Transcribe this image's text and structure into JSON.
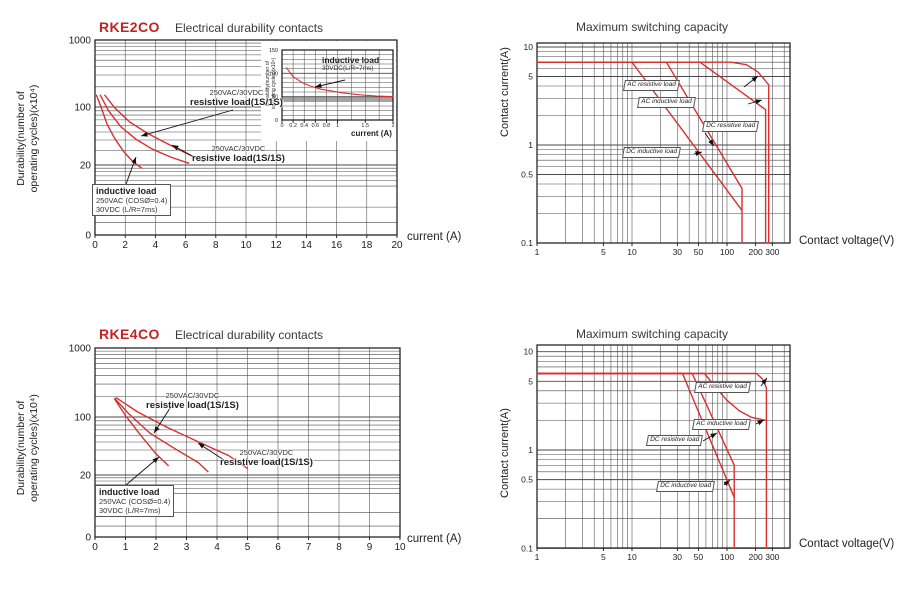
{
  "page": {
    "background": "#ffffff"
  },
  "colors": {
    "curve": "#d83030",
    "model_red": "#c22424",
    "title_gray": "#3a3a3a",
    "grid": "#4a4a4a"
  },
  "chart_data": [
    {
      "id": "rke2co-durability",
      "type": "line",
      "model": "RKE2CO",
      "title": "Electrical durability contacts",
      "ylabel_line1": "Durability(number of",
      "ylabel_line2": "operating cycles)(x10⁴)",
      "xlabel": "current (A)",
      "x_scale": "linear",
      "y_scale": "log-truncated-at-0",
      "xlim": [
        0,
        20
      ],
      "ylim": [
        0,
        1000
      ],
      "x_ticks": [
        "0",
        "2",
        "4",
        "6",
        "8",
        "10",
        "12",
        "14",
        "16",
        "18",
        "20"
      ],
      "y_ticks": [
        "1000",
        "100",
        "20",
        "0"
      ],
      "series": [
        {
          "name": "inductive load 250VAC (COSØ=0.4) 30VDC (L/R=7ms)",
          "points": [
            [
              0.1,
              150
            ],
            [
              0.4,
              100
            ],
            [
              0.8,
              62
            ],
            [
              1.3,
              42
            ],
            [
              1.9,
              29
            ],
            [
              2.5,
              22
            ],
            [
              3.1,
              18
            ]
          ]
        },
        {
          "name": "resistive load (1S/1S) 250VAC/30VDC curve 1",
          "points": [
            [
              0.35,
              150
            ],
            [
              0.9,
              90
            ],
            [
              1.7,
              58
            ],
            [
              2.7,
              41
            ],
            [
              3.8,
              31
            ],
            [
              5,
              25
            ],
            [
              6.2,
              21
            ]
          ]
        },
        {
          "name": "resistive load (1S/1S) 250VAC/30VDC curve 2",
          "points": [
            [
              0.65,
              150
            ],
            [
              1.3,
              98
            ],
            [
              2.3,
              66
            ],
            [
              3.5,
              48
            ],
            [
              4.8,
              36
            ],
            [
              6,
              28
            ],
            [
              7.2,
              22
            ]
          ]
        }
      ],
      "annotations": {
        "res1_line1": "250VAC/30VDC",
        "res1_line2": "resistive load(1S/1S)",
        "res2_line1": "250VAC/30VDC",
        "res2_line2": "resistive load(1S/1S)",
        "ind_line1": "inductive load",
        "ind_line2": "250VAC (COSØ=0.4)",
        "ind_line3": "30VDC (L/R=7ms)"
      }
    },
    {
      "id": "rke2co-inductive-inset",
      "type": "line",
      "ylabel_line1": "Durability(number of",
      "ylabel_line2": "operating cycles)(x10⁴)",
      "xlabel": "current (A)",
      "x_scale": "linear",
      "y_scale": "linear",
      "xlim": [
        0,
        2
      ],
      "ylim": [
        0,
        150
      ],
      "x_ticks": [
        "0",
        "0.2",
        "0.4",
        "0.6",
        "0.8",
        "1",
        "1.5",
        "2"
      ],
      "y_ticks": [
        "150",
        "100",
        "50",
        "0"
      ],
      "series": [
        {
          "name": "inductive load 30VDC (L/R=7ms)",
          "points": [
            [
              0.08,
              112
            ],
            [
              0.2,
              93
            ],
            [
              0.35,
              81
            ],
            [
              0.5,
              73
            ],
            [
              0.7,
              66
            ],
            [
              0.9,
              62
            ],
            [
              1.1,
              58
            ],
            [
              1.4,
              54
            ],
            [
              1.7,
              51.5
            ],
            [
              2,
              50
            ]
          ]
        }
      ],
      "annotations": {
        "label_line1": "inductive load",
        "label_line2": "30VDC(L/R=7ms)"
      }
    },
    {
      "id": "rke2co-max-switching",
      "type": "line",
      "title": "Maximum switching capacity",
      "ylabel": "Contact current(A)",
      "xlabel": "Contact voltage(V)",
      "x_scale": "log",
      "y_scale": "log",
      "xlim": [
        1,
        400
      ],
      "ylim": [
        0.1,
        10
      ],
      "x_ticks": [
        "1",
        "5",
        "10",
        "30",
        "50",
        "100",
        "200",
        "300"
      ],
      "y_ticks": [
        "10",
        "5",
        "1",
        "0.5",
        "0.1"
      ],
      "series": [
        {
          "name": "AC resistive load",
          "points": [
            [
              1,
              7
            ],
            [
              110,
              7
            ],
            [
              160,
              6.6
            ],
            [
              210,
              5.6
            ],
            [
              250,
              4.6
            ],
            [
              275,
              4.1
            ],
            [
              275,
              0.1
            ]
          ]
        },
        {
          "name": "AC inductive load",
          "points": [
            [
              1,
              7
            ],
            [
              52,
              7
            ],
            [
              255,
              2.3
            ],
            [
              255,
              0.1
            ]
          ]
        },
        {
          "name": "DC resistive load",
          "points": [
            [
              1,
              7
            ],
            [
              23,
              7
            ],
            [
              144,
              0.36
            ],
            [
              144,
              0.1
            ]
          ]
        },
        {
          "name": "DC inductive load",
          "points": [
            [
              1,
              7
            ],
            [
              10,
              7
            ],
            [
              144,
              0.215
            ]
          ]
        }
      ],
      "annotations": {
        "ac_res": "AC resistive load",
        "ac_ind": "AC inductive load",
        "dc_res": "DC resistive load",
        "dc_ind": "DC inductive load"
      }
    },
    {
      "id": "rke4co-durability",
      "type": "line",
      "model": "RKE4CO",
      "title": "Electrical durability contacts",
      "ylabel_line1": "Durability(number of",
      "ylabel_line2": "operating cycles)(x10⁴)",
      "xlabel": "current (A)",
      "x_scale": "linear",
      "y_scale": "log-truncated-at-0",
      "xlim": [
        0,
        10
      ],
      "ylim": [
        0,
        1000
      ],
      "x_ticks": [
        "0",
        "1",
        "2",
        "3",
        "4",
        "5",
        "6",
        "7",
        "8",
        "9",
        "10"
      ],
      "y_ticks": [
        "1000",
        "100",
        "20",
        "0"
      ],
      "series": [
        {
          "name": "inductive load 250VAC (COSØ=0.4) 30VDC (L/R=7ms)",
          "points": [
            [
              0.65,
              180
            ],
            [
              1,
              105
            ],
            [
              1.5,
              60
            ],
            [
              2,
              36
            ],
            [
              2.4,
              26
            ]
          ]
        },
        {
          "name": "resistive load (1S/1S) 250VAC/30VDC curve 1",
          "points": [
            [
              0.65,
              185
            ],
            [
              1.1,
              112
            ],
            [
              1.8,
              64
            ],
            [
              2.6,
              42
            ],
            [
              3.4,
              28
            ],
            [
              3.7,
              22
            ]
          ]
        },
        {
          "name": "resistive load (1S/1S) 250VAC/30VDC curve 2",
          "points": [
            [
              0.7,
              190
            ],
            [
              1.4,
              118
            ],
            [
              2.4,
              74
            ],
            [
              3.4,
              50
            ],
            [
              4.4,
              34
            ],
            [
              5,
              24
            ]
          ]
        }
      ],
      "annotations": {
        "res1_line1": "250VAC/30VDC",
        "res1_line2": "resistive load(1S/1S)",
        "res2_line1": "250VAC/30VDC",
        "res2_line2": "resistive load(1S/1S)",
        "ind_line1": "inductive load",
        "ind_line2": "250VAC (COSØ=0.4)",
        "ind_line3": "30VDC (L/R=7ms)"
      }
    },
    {
      "id": "rke4co-max-switching",
      "type": "line",
      "title": "Maximum switching capacity",
      "ylabel": "Contact current(A)",
      "xlabel": "Contact voltage(V)",
      "x_scale": "log",
      "y_scale": "log",
      "xlim": [
        1,
        400
      ],
      "ylim": [
        0.1,
        10
      ],
      "x_ticks": [
        "1",
        "5",
        "10",
        "30",
        "50",
        "100",
        "200",
        "300"
      ],
      "y_ticks": [
        "10",
        "5",
        "1",
        "0.5",
        "0.1"
      ],
      "series": [
        {
          "name": "AC resistive load",
          "points": [
            [
              1,
              6
            ],
            [
              205,
              6
            ],
            [
              235,
              5.3
            ],
            [
              260,
              4.3
            ],
            [
              260,
              0.1
            ]
          ]
        },
        {
          "name": "AC inductive load",
          "points": [
            [
              1,
              6
            ],
            [
              58,
              6
            ],
            [
              78,
              4.2
            ],
            [
              100,
              3.2
            ],
            [
              135,
              2.5
            ],
            [
              180,
              2.15
            ],
            [
              258,
              2.0
            ]
          ]
        },
        {
          "name": "DC resistive load",
          "points": [
            [
              1,
              6
            ],
            [
              43,
              6
            ],
            [
              119,
              0.7
            ],
            [
              119,
              0.1
            ]
          ]
        },
        {
          "name": "DC inductive load",
          "points": [
            [
              1,
              6
            ],
            [
              34,
              6
            ],
            [
              119,
              0.33
            ]
          ]
        }
      ],
      "annotations": {
        "ac_res": "AC resistive load",
        "ac_ind": "AC inductive load",
        "dc_res": "DC resistive load",
        "dc_ind": "DC inductive load"
      }
    }
  ]
}
